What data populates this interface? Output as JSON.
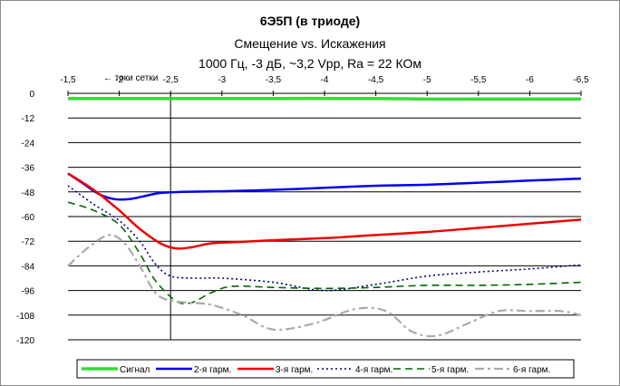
{
  "chart_data": {
    "type": "line",
    "title": "6Э5П (в триоде)",
    "subtitle": "Смещение vs. Искажения",
    "subtitle2": "1000 Гц, -3 дБ, ~3,2 Vpp, Ra = 22 КОм",
    "annotation": "← токи сетки",
    "marker_x": -2.5,
    "xlim": [
      -1.5,
      -6.5
    ],
    "ylim": [
      0,
      -120
    ],
    "x_ticks": [
      "-1,5",
      "-2",
      "-2,5",
      "-3",
      "-3,5",
      "-4",
      "-4,5",
      "-5",
      "-5,5",
      "-6",
      "-6,5"
    ],
    "x_tick_values": [
      -1.5,
      -2,
      -2.5,
      -3,
      -3.5,
      -4,
      -4.5,
      -5,
      -5.5,
      -6,
      -6.5
    ],
    "y_ticks": [
      "0",
      "-12",
      "-24",
      "-36",
      "-48",
      "-60",
      "-72",
      "-84",
      "-96",
      "-108",
      "-120"
    ],
    "y_tick_values": [
      0,
      -12,
      -24,
      -36,
      -48,
      -60,
      -72,
      -84,
      -96,
      -108,
      -120
    ],
    "grid": "horizontal",
    "legend_position": "bottom",
    "series": [
      {
        "name": "Сигнал",
        "color": "#33dd33",
        "dash": "solid",
        "width": 3.5,
        "x": [
          -1.5,
          -2.5,
          -3.5,
          -4.5,
          -5,
          -5.5,
          -6.5
        ],
        "y": [
          -2.5,
          -2.5,
          -2.5,
          -2.5,
          -2.8,
          -2.8,
          -2.8
        ]
      },
      {
        "name": "2-я гарм.",
        "color": "#0000ee",
        "dash": "solid",
        "width": 2.5,
        "x": [
          -1.5,
          -1.65,
          -1.8,
          -1.95,
          -2.1,
          -2.25,
          -2.4,
          -2.6,
          -3,
          -3.5,
          -4,
          -4.5,
          -5,
          -5.5,
          -6,
          -6.5
        ],
        "y": [
          -39,
          -44,
          -49,
          -51.5,
          -51.5,
          -50,
          -48.5,
          -48,
          -47.7,
          -47,
          -46,
          -45,
          -44.5,
          -43.5,
          -42.5,
          -41.5
        ]
      },
      {
        "name": "3-я гарм.",
        "color": "#ee0000",
        "dash": "solid",
        "width": 2.5,
        "x": [
          -1.5,
          -1.75,
          -2,
          -2.2,
          -2.4,
          -2.55,
          -2.7,
          -2.9,
          -3.2,
          -3.5,
          -4,
          -4.5,
          -5,
          -5.5,
          -6,
          -6.5
        ],
        "y": [
          -39,
          -47,
          -57,
          -66,
          -73,
          -75.5,
          -75,
          -73,
          -72.3,
          -71.5,
          -70.5,
          -69,
          -67.5,
          -65.5,
          -63.5,
          -61.5
        ]
      },
      {
        "name": "4-я гарм.",
        "color": "#000080",
        "dash": "dot",
        "width": 1.6,
        "x": [
          -1.5,
          -1.75,
          -2,
          -2.2,
          -2.35,
          -2.5,
          -2.75,
          -3,
          -3.5,
          -4,
          -4.5,
          -5,
          -5.5,
          -6,
          -6.5
        ],
        "y": [
          -45,
          -54,
          -62,
          -72,
          -83,
          -89,
          -90,
          -90,
          -92,
          -96,
          -93,
          -89,
          -87,
          -85.5,
          -83.5
        ]
      },
      {
        "name": "5-я гарм.",
        "color": "#006600",
        "dash": "dash",
        "width": 1.6,
        "x": [
          -1.5,
          -1.75,
          -2,
          -2.2,
          -2.35,
          -2.55,
          -2.7,
          -2.9,
          -3.1,
          -3.5,
          -4,
          -4.5,
          -5,
          -5.5,
          -6,
          -6.5
        ],
        "y": [
          -53,
          -57,
          -64,
          -78,
          -91,
          -101,
          -102,
          -97,
          -94,
          -94.5,
          -95,
          -94.5,
          -93.5,
          -93.5,
          -93,
          -92
        ]
      },
      {
        "name": "6-я гарм.",
        "color": "#aaaaaa",
        "dash": "dashdot",
        "width": 2.2,
        "x": [
          -1.5,
          -1.7,
          -1.9,
          -2.05,
          -2.2,
          -2.35,
          -2.5,
          -2.7,
          -2.9,
          -3.2,
          -3.5,
          -3.9,
          -4.3,
          -4.6,
          -4.85,
          -5.1,
          -5.4,
          -5.7,
          -6,
          -6.3,
          -6.5
        ],
        "y": [
          -84,
          -75,
          -69,
          -73,
          -84,
          -97,
          -101,
          -102,
          -103,
          -108,
          -115,
          -112,
          -105,
          -106,
          -116,
          -118,
          -112,
          -106,
          -106,
          -106,
          -108
        ]
      }
    ]
  }
}
